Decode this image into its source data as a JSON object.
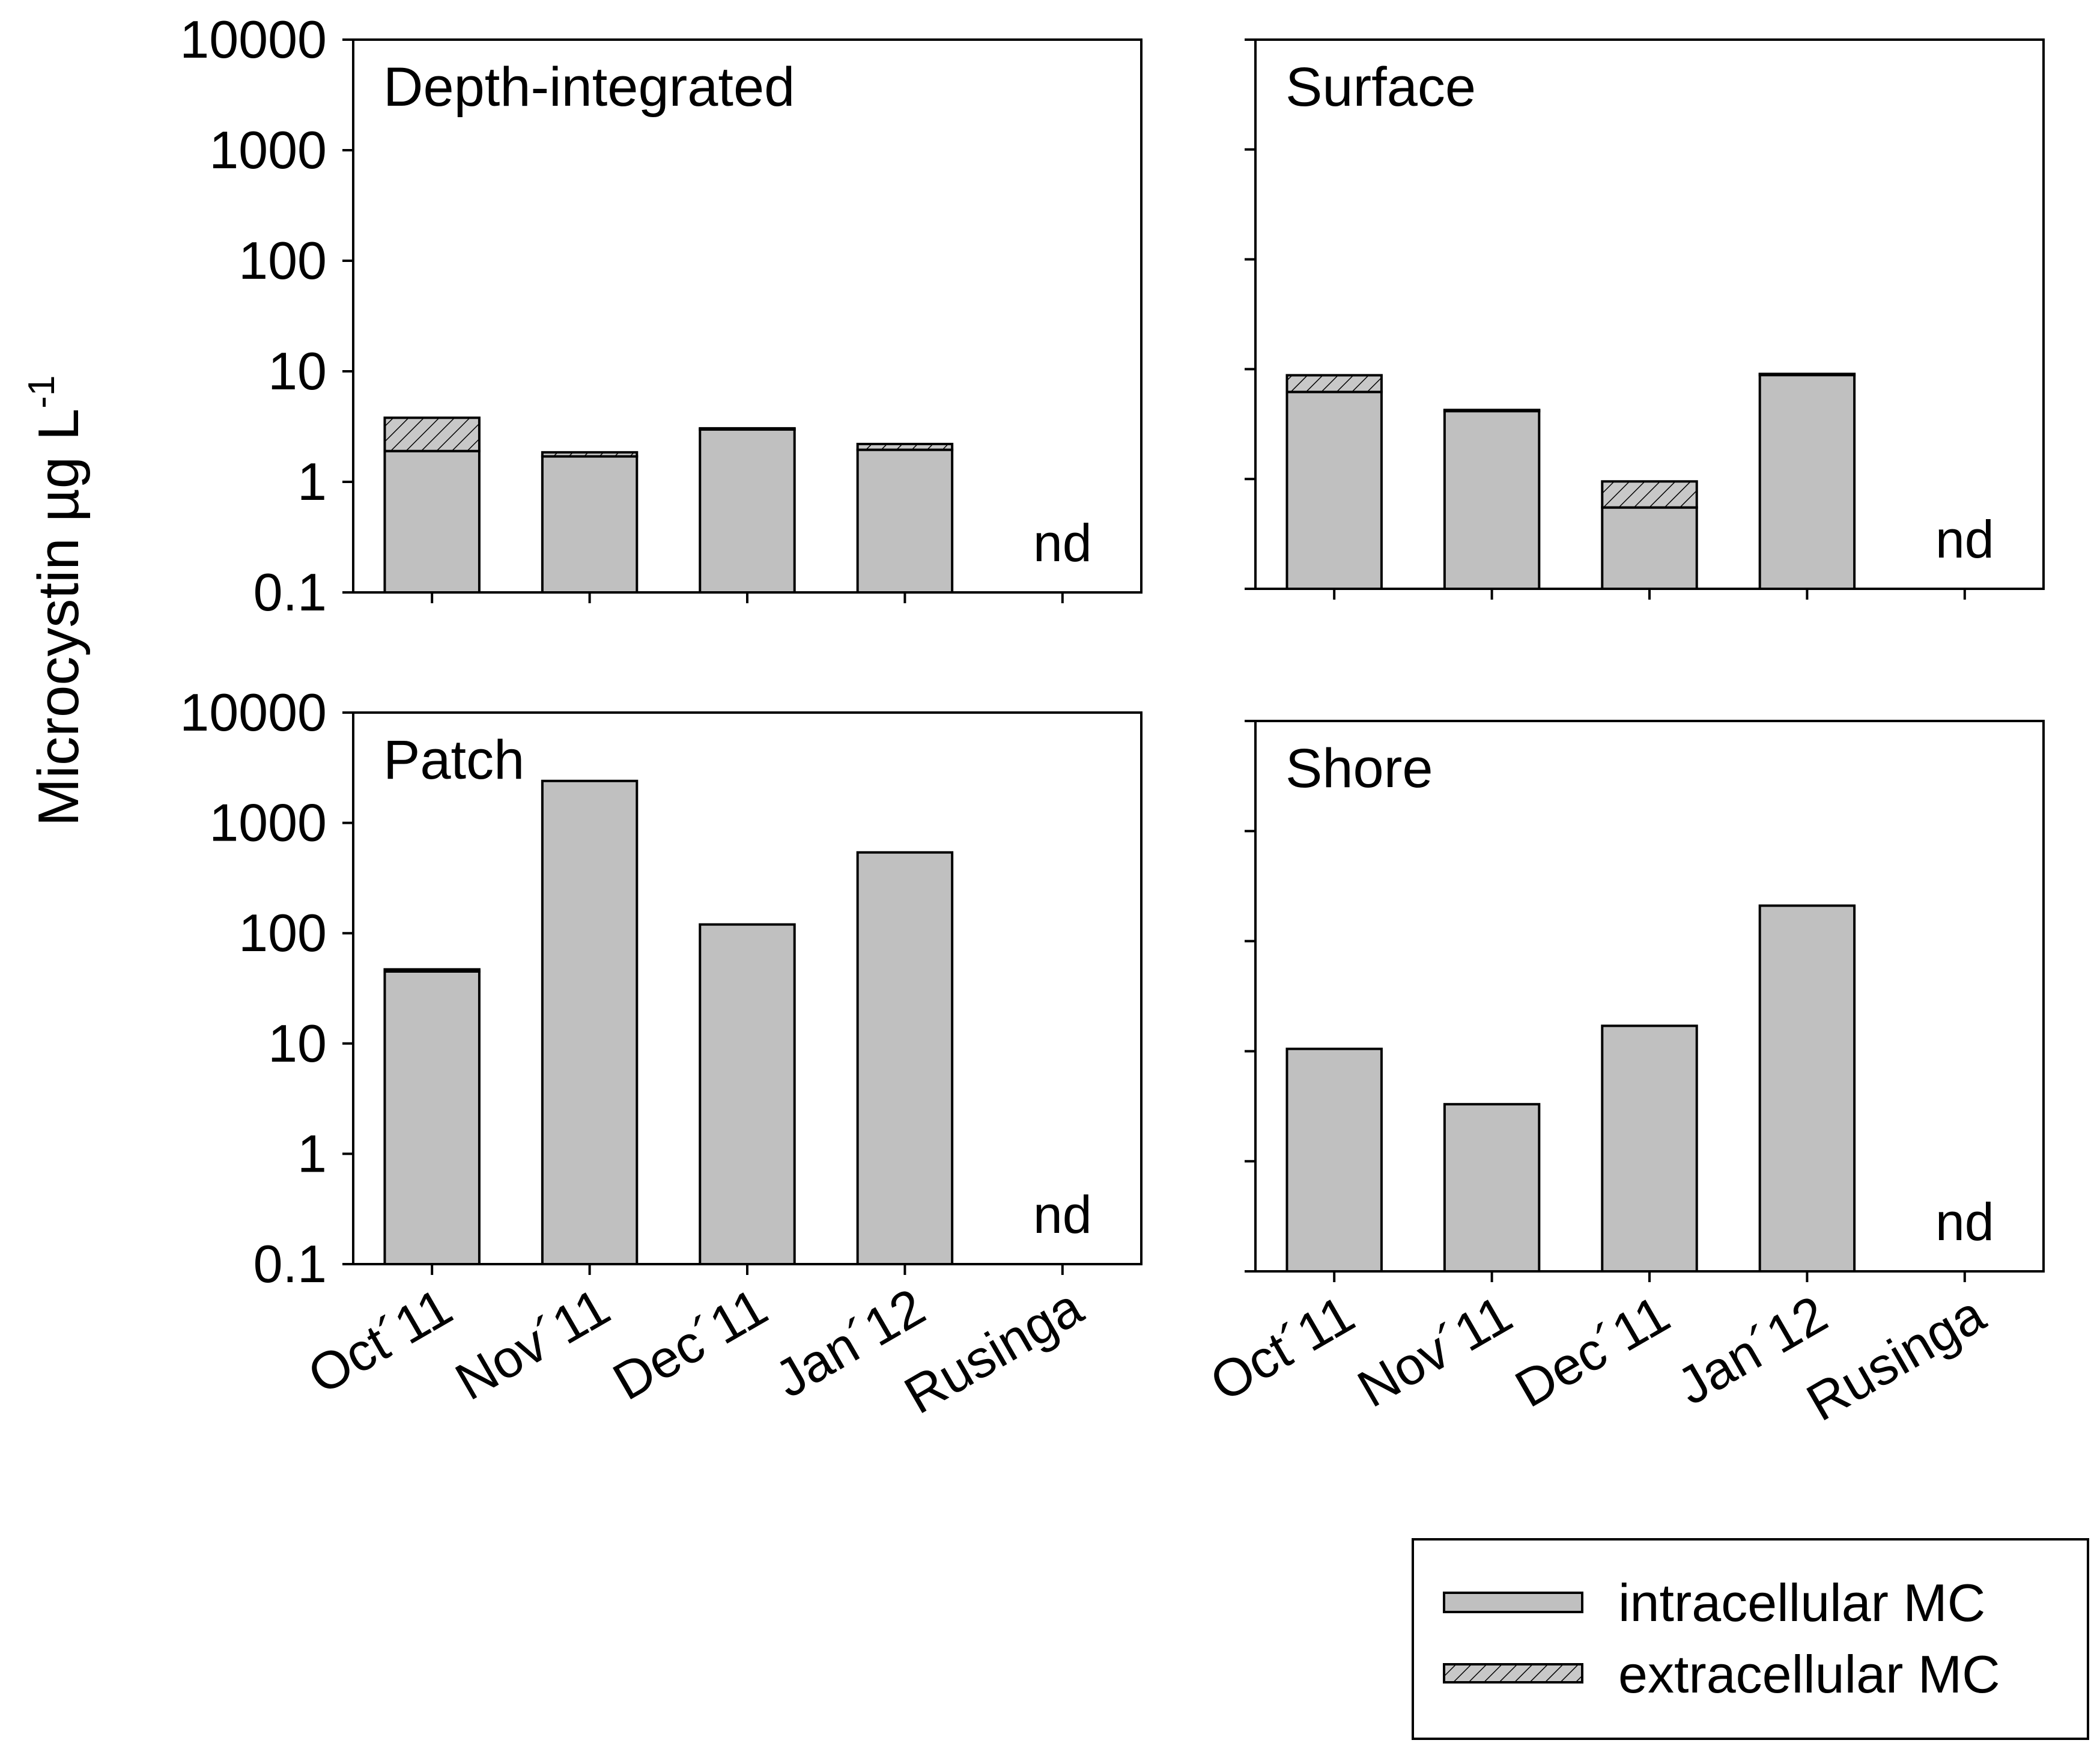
{
  "figure": {
    "ylabel_main": "Microcystin µg L",
    "ylabel_sup": "-1",
    "scale": "log",
    "not_detected_label": "nd"
  },
  "legend": {
    "items": [
      {
        "label": "intracellular MC",
        "pattern": "solid"
      },
      {
        "label": "extracellular MC",
        "pattern": "hatched"
      }
    ]
  },
  "colors": {
    "bar_fill": "#c0c0c0",
    "hatch_fill": "#c8c8c8",
    "stroke": "#000000",
    "background": "#ffffff"
  },
  "chart_data": [
    {
      "type": "bar",
      "stacked": true,
      "title": "Depth-integrated",
      "categories": [
        "Oct´11",
        "Nov´11",
        "Dec´11",
        "Jan´12",
        "Rusinga"
      ],
      "series": [
        {
          "name": "intracellular MC",
          "values": [
            1.9,
            1.7,
            3.0,
            1.95,
            null
          ]
        },
        {
          "name": "extracellular MC",
          "values": [
            1.9,
            0.15,
            0.05,
            0.25,
            null
          ]
        }
      ],
      "annotations": [
        {
          "category": "Rusinga",
          "text": "nd"
        }
      ],
      "ylim": [
        0.1,
        10000
      ],
      "yticks": [
        "0.1",
        "1",
        "10",
        "100",
        "1000",
        "10000"
      ],
      "ytick_labels_shown": true,
      "xtick_labels_shown": false,
      "xlabel": "",
      "ylabel": "Microcystin µg L-1"
    },
    {
      "type": "bar",
      "stacked": true,
      "title": "Surface",
      "categories": [
        "Oct´11",
        "Nov´11",
        "Dec´11",
        "Jan´12",
        "Rusinga"
      ],
      "series": [
        {
          "name": "intracellular MC",
          "values": [
            6.2,
            4.2,
            0.55,
            9.0,
            null
          ]
        },
        {
          "name": "extracellular MC",
          "values": [
            2.6,
            0.05,
            0.4,
            0.05,
            null
          ]
        }
      ],
      "annotations": [
        {
          "category": "Rusinga",
          "text": "nd"
        }
      ],
      "ylim": [
        0.1,
        10000
      ],
      "yticks": [
        "0.1",
        "1",
        "10",
        "100",
        "1000",
        "10000"
      ],
      "ytick_labels_shown": false,
      "xtick_labels_shown": false,
      "xlabel": "",
      "ylabel": ""
    },
    {
      "type": "bar",
      "stacked": true,
      "title": "Patch",
      "categories": [
        "Oct´11",
        "Nov´11",
        "Dec´11",
        "Jan´12",
        "Rusinga"
      ],
      "series": [
        {
          "name": "intracellular MC",
          "values": [
            45,
            2400,
            120,
            540,
            null
          ]
        },
        {
          "name": "extracellular MC",
          "values": [
            2,
            0,
            0,
            0,
            null
          ]
        }
      ],
      "annotations": [
        {
          "category": "Rusinga",
          "text": "nd"
        }
      ],
      "ylim": [
        0.1,
        10000
      ],
      "yticks": [
        "0.1",
        "1",
        "10",
        "100",
        "1000",
        "10000"
      ],
      "ytick_labels_shown": true,
      "xtick_labels_shown": true,
      "xlabel": "",
      "ylabel": "Microcystin µg L-1"
    },
    {
      "type": "bar",
      "stacked": true,
      "title": "Shore",
      "categories": [
        "Oct´11",
        "Nov´11",
        "Dec´11",
        "Jan´12",
        "Rusinga"
      ],
      "series": [
        {
          "name": "intracellular MC",
          "values": [
            10.5,
            3.3,
            17,
            210,
            null
          ]
        },
        {
          "name": "extracellular MC",
          "values": [
            0,
            0,
            0,
            0,
            null
          ]
        }
      ],
      "annotations": [
        {
          "category": "Rusinga",
          "text": "nd"
        }
      ],
      "ylim": [
        0.1,
        10000
      ],
      "yticks": [
        "0.1",
        "1",
        "10",
        "100",
        "1000",
        "10000"
      ],
      "ytick_labels_shown": false,
      "xtick_labels_shown": true,
      "xlabel": "",
      "ylabel": ""
    }
  ]
}
